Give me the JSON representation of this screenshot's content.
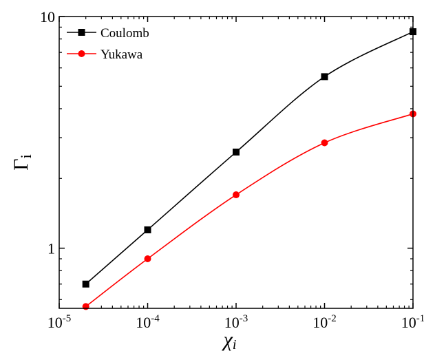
{
  "chart_data": {
    "type": "line",
    "xlabel": "χ",
    "xlabel_sub": "i",
    "ylabel": "Γ",
    "ylabel_sub": "i",
    "x_scale": "log",
    "y_scale": "log",
    "xlim": [
      1e-05,
      0.1
    ],
    "ylim": [
      0.55,
      10
    ],
    "x_ticks": [
      {
        "value": 1e-05,
        "base": "10",
        "exp": "-5"
      },
      {
        "value": 0.0001,
        "base": "10",
        "exp": "-4"
      },
      {
        "value": 0.001,
        "base": "10",
        "exp": "-3"
      },
      {
        "value": 0.01,
        "base": "10",
        "exp": "-2"
      },
      {
        "value": 0.1,
        "base": "10",
        "exp": "-1"
      }
    ],
    "y_ticks": [
      {
        "value": 1,
        "label": "1"
      },
      {
        "value": 10,
        "label": "10"
      }
    ],
    "legend_position": "top-left",
    "grid": false,
    "series": [
      {
        "name": "Coulomb",
        "color": "#000000",
        "marker": "square",
        "x": [
          2e-05,
          0.0001,
          0.001,
          0.01,
          0.1
        ],
        "y": [
          0.7,
          1.2,
          2.6,
          5.5,
          8.6
        ]
      },
      {
        "name": "Yukawa",
        "color": "#ff0000",
        "marker": "circle",
        "x": [
          2e-05,
          0.0001,
          0.001,
          0.01,
          0.1
        ],
        "y": [
          0.56,
          0.9,
          1.7,
          2.85,
          3.8
        ]
      }
    ]
  }
}
